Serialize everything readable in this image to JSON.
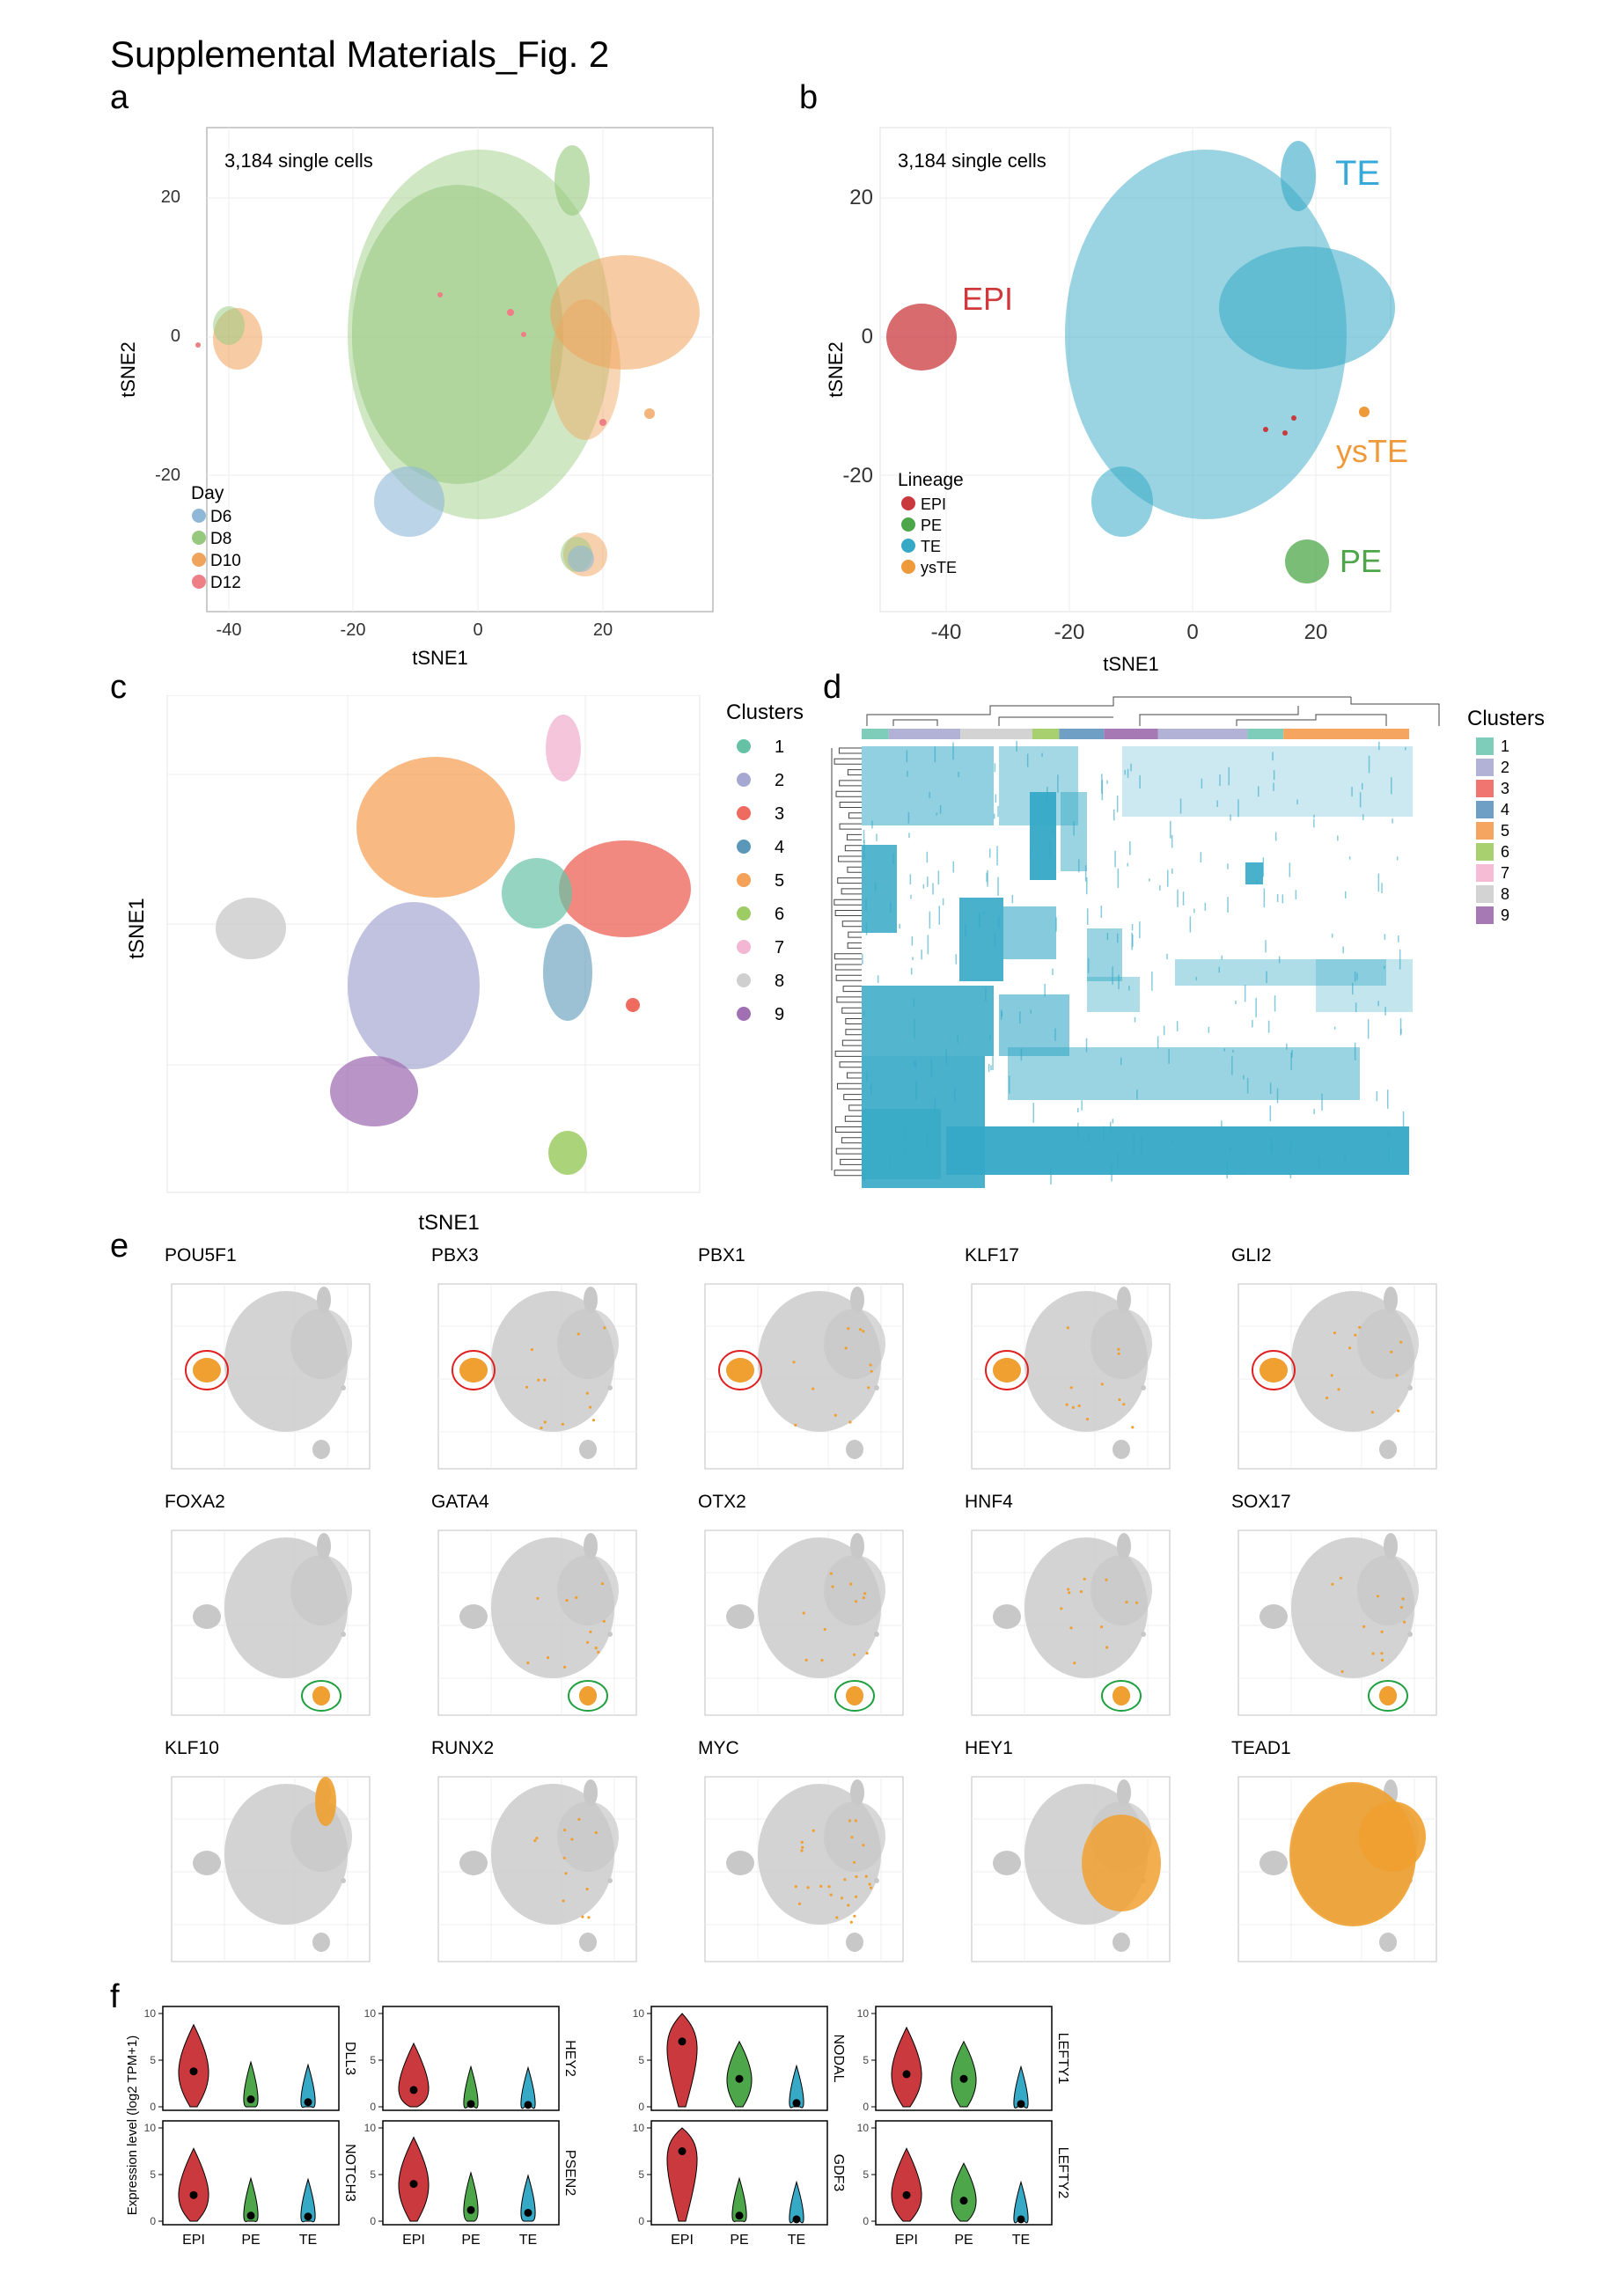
{
  "title": "Supplemental Materials_Fig. 2",
  "panel_letters": {
    "a": "a",
    "b": "b",
    "c": "c",
    "d": "d",
    "e": "e",
    "f": "f"
  },
  "panel_a": {
    "annotation": "3,184 single cells",
    "xlabel": "tSNE1",
    "ylabel": "tSNE2",
    "xticks": [
      "-40",
      "-20",
      "0",
      "20"
    ],
    "yticks": [
      "20",
      "0",
      "-20"
    ],
    "legend_title": "Day",
    "legend": [
      {
        "label": "D6",
        "color": "#8fb7d8"
      },
      {
        "label": "D8",
        "color": "#96c97d"
      },
      {
        "label": "D10",
        "color": "#f0a35b"
      },
      {
        "label": "D12",
        "color": "#ef7f86"
      }
    ]
  },
  "panel_b": {
    "annotation": "3,184 single cells",
    "xlabel": "tSNE1",
    "ylabel": "tSNE2",
    "xticks": [
      "-40",
      "-20",
      "0",
      "20"
    ],
    "yticks": [
      "20",
      "0",
      "-20"
    ],
    "legend_title": "Lineage",
    "legend": [
      {
        "label": "EPI",
        "color": "#c9393d"
      },
      {
        "label": "PE",
        "color": "#4da74a"
      },
      {
        "label": "TE",
        "color": "#35a9c6"
      },
      {
        "label": "ysTE",
        "color": "#ef9a3a"
      }
    ],
    "cluster_labels": [
      {
        "text": "TE",
        "color": "#35a9d8"
      },
      {
        "text": "EPI",
        "color": "#d0393c"
      },
      {
        "text": "ysTE",
        "color": "#ef9a3a"
      },
      {
        "text": "PE",
        "color": "#4da74a"
      }
    ]
  },
  "panel_c": {
    "xlabel": "tSNE1",
    "ylabel": "tSNE1",
    "legend_title": "Clusters",
    "legend": [
      {
        "label": "1",
        "color": "#66c2a5"
      },
      {
        "label": "2",
        "color": "#a6a8d2"
      },
      {
        "label": "3",
        "color": "#ef6b60"
      },
      {
        "label": "4",
        "color": "#5a97b8"
      },
      {
        "label": "5",
        "color": "#f5a15a"
      },
      {
        "label": "6",
        "color": "#9ccc63"
      },
      {
        "label": "7",
        "color": "#f3b6d3"
      },
      {
        "label": "8",
        "color": "#cfcfcf"
      },
      {
        "label": "9",
        "color": "#a170b3"
      }
    ]
  },
  "panel_d": {
    "legend_title": "Clusters",
    "legend": [
      {
        "label": "1",
        "color": "#7ecdbb"
      },
      {
        "label": "2",
        "color": "#b2b2d6"
      },
      {
        "label": "3",
        "color": "#f07470"
      },
      {
        "label": "4",
        "color": "#6f9fc4"
      },
      {
        "label": "5",
        "color": "#f5a55f"
      },
      {
        "label": "6",
        "color": "#a8d06e"
      },
      {
        "label": "7",
        "color": "#f6bcd6"
      },
      {
        "label": "8",
        "color": "#d3d3d3"
      },
      {
        "label": "9",
        "color": "#a679b4"
      }
    ],
    "heat_color": "#35a9c6"
  },
  "panel_e": {
    "highlight_color": "#f0a030",
    "background_color": "#c8c8c8",
    "genes": [
      {
        "name": "POU5F1",
        "circle": "red"
      },
      {
        "name": "PBX3",
        "circle": "red"
      },
      {
        "name": "PBX1",
        "circle": "red"
      },
      {
        "name": "KLF17",
        "circle": "red"
      },
      {
        "name": "GLI2",
        "circle": "red"
      },
      {
        "name": "FOXA2",
        "circle": "green"
      },
      {
        "name": "GATA4",
        "circle": "green"
      },
      {
        "name": "OTX2",
        "circle": "green"
      },
      {
        "name": "HNF4",
        "circle": "green"
      },
      {
        "name": "SOX17",
        "circle": "green"
      },
      {
        "name": "KLF10",
        "circle": ""
      },
      {
        "name": "RUNX2",
        "circle": ""
      },
      {
        "name": "MYC",
        "circle": ""
      },
      {
        "name": "HEY1",
        "circle": ""
      },
      {
        "name": "TEAD1",
        "circle": ""
      }
    ]
  },
  "panel_f": {
    "ylabel": "Expression level (log2 TPM+1)",
    "yticks": [
      "0",
      "5",
      "10"
    ],
    "groups": [
      "EPI",
      "PE",
      "TE"
    ],
    "group_colors": [
      "#c9393d",
      "#4da74a",
      "#35a9c6"
    ],
    "plots": [
      {
        "gene": "DLL3",
        "medians": [
          3.8,
          0.8,
          0.5
        ]
      },
      {
        "gene": "NOTCH3",
        "medians": [
          2.8,
          0.6,
          0.5
        ]
      },
      {
        "gene": "HEY2",
        "medians": [
          1.8,
          0.3,
          0.2
        ]
      },
      {
        "gene": "PSEN2",
        "medians": [
          4.0,
          1.2,
          0.9
        ]
      },
      {
        "gene": "NODAL",
        "medians": [
          7.0,
          3.0,
          0.4
        ]
      },
      {
        "gene": "GDF3",
        "medians": [
          7.5,
          0.6,
          0.2
        ]
      },
      {
        "gene": "LEFTY1",
        "medians": [
          3.5,
          3.0,
          0.3
        ]
      },
      {
        "gene": "LEFTY2",
        "medians": [
          2.8,
          2.2,
          0.2
        ]
      }
    ]
  }
}
